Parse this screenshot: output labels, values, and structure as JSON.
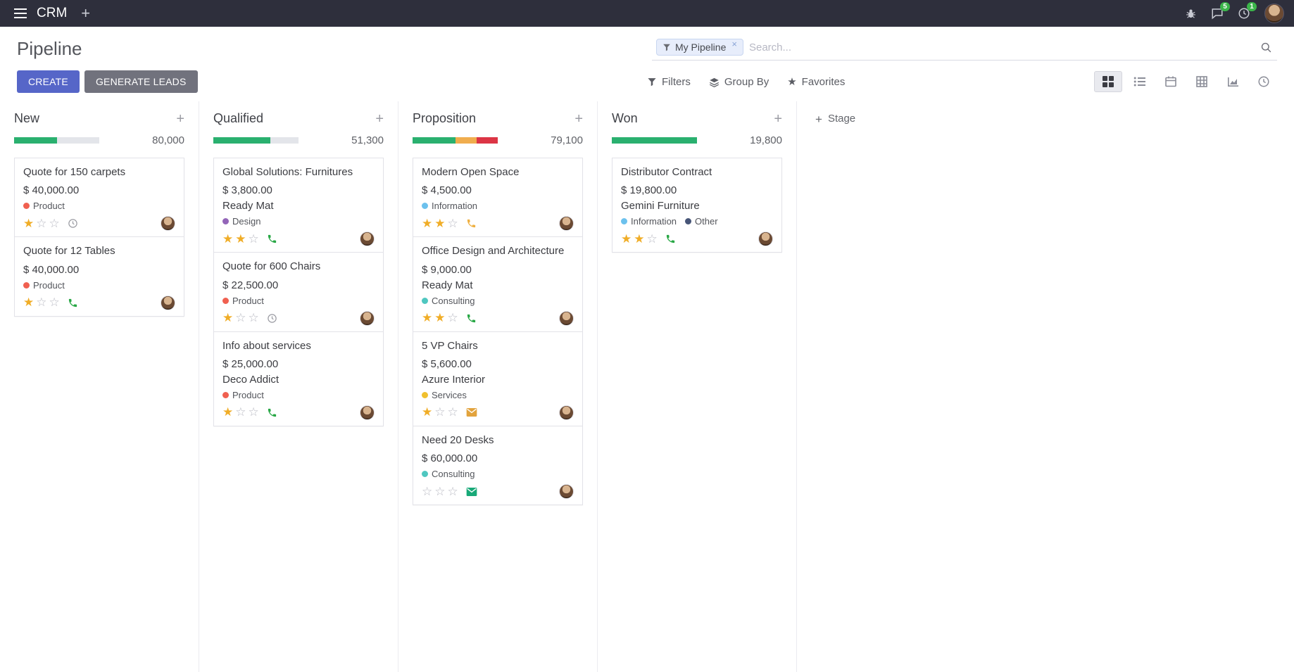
{
  "topbar": {
    "app_name": "CRM",
    "chat_badge": "5",
    "activity_badge": "1"
  },
  "control_panel": {
    "title": "Pipeline",
    "search": {
      "facet_label": "My Pipeline",
      "facet_remove": "×",
      "placeholder": "Search..."
    },
    "create_label": "CREATE",
    "generate_leads_label": "GENERATE LEADS",
    "filters_label": "Filters",
    "group_by_label": "Group By",
    "favorites_label": "Favorites"
  },
  "kanban": {
    "add_stage_label": "Stage",
    "columns": [
      {
        "name": "New",
        "counter": "80,000",
        "progress": [
          {
            "color": "#2ab06f",
            "pct": 50
          }
        ],
        "cards": [
          {
            "title": "Quote for 150 carpets",
            "amount": "$ 40,000.00",
            "partner": "",
            "tags": [
              {
                "label": "Product",
                "color": "#f06050"
              }
            ],
            "stars": 1,
            "activity": {
              "type": "clock",
              "color": "#9b9ca3"
            }
          },
          {
            "title": "Quote for 12 Tables",
            "amount": "$ 40,000.00",
            "partner": "",
            "tags": [
              {
                "label": "Product",
                "color": "#f06050"
              }
            ],
            "stars": 1,
            "activity": {
              "type": "phone",
              "color": "#28a745"
            }
          }
        ]
      },
      {
        "name": "Qualified",
        "counter": "51,300",
        "progress": [
          {
            "color": "#2ab06f",
            "pct": 67
          }
        ],
        "cards": [
          {
            "title": "Global Solutions: Furnitures",
            "amount": "$ 3,800.00",
            "partner": "Ready Mat",
            "tags": [
              {
                "label": "Design",
                "color": "#9365b8"
              }
            ],
            "stars": 2,
            "activity": {
              "type": "phone",
              "color": "#28a745"
            }
          },
          {
            "title": "Quote for 600 Chairs",
            "amount": "$ 22,500.00",
            "partner": "",
            "tags": [
              {
                "label": "Product",
                "color": "#f06050"
              }
            ],
            "stars": 1,
            "activity": {
              "type": "clock",
              "color": "#9b9ca3"
            }
          },
          {
            "title": "Info about services",
            "amount": "$ 25,000.00",
            "partner": "Deco Addict",
            "tags": [
              {
                "label": "Product",
                "color": "#f06050"
              }
            ],
            "stars": 1,
            "activity": {
              "type": "phone",
              "color": "#28a745"
            }
          }
        ]
      },
      {
        "name": "Proposition",
        "counter": "79,100",
        "progress": [
          {
            "color": "#2ab06f",
            "pct": 50
          },
          {
            "color": "#f0ad4e",
            "pct": 25
          },
          {
            "color": "#dc3545",
            "pct": 25
          }
        ],
        "cards": [
          {
            "title": "Modern Open Space",
            "amount": "$ 4,500.00",
            "partner": "",
            "tags": [
              {
                "label": "Information",
                "color": "#6cc1ed"
              }
            ],
            "stars": 2,
            "activity": {
              "type": "phone",
              "color": "#efb041"
            }
          },
          {
            "title": "Office Design and Architecture",
            "amount": "$ 9,000.00",
            "partner": "Ready Mat",
            "tags": [
              {
                "label": "Consulting",
                "color": "#4fc7c0"
              }
            ],
            "stars": 2,
            "activity": {
              "type": "phone",
              "color": "#28a745"
            }
          },
          {
            "title": "5 VP Chairs",
            "amount": "$ 5,600.00",
            "partner": "Azure Interior",
            "tags": [
              {
                "label": "Services",
                "color": "#f0c02e"
              }
            ],
            "stars": 1,
            "activity": {
              "type": "envelope",
              "color": "#e2a33d"
            }
          },
          {
            "title": "Need 20 Desks",
            "amount": "$ 60,000.00",
            "partner": "",
            "tags": [
              {
                "label": "Consulting",
                "color": "#4fc7c0"
              }
            ],
            "stars": 0,
            "activity": {
              "type": "envelope",
              "color": "#18a978"
            }
          }
        ]
      },
      {
        "name": "Won",
        "counter": "19,800",
        "progress": [
          {
            "color": "#2ab06f",
            "pct": 100
          }
        ],
        "cards": [
          {
            "title": "Distributor Contract",
            "amount": "$ 19,800.00",
            "partner": "Gemini Furniture",
            "tags": [
              {
                "label": "Information",
                "color": "#6cc1ed"
              },
              {
                "label": "Other",
                "color": "#475577"
              }
            ],
            "stars": 2,
            "activity": {
              "type": "phone",
              "color": "#28a745"
            }
          }
        ]
      }
    ]
  }
}
